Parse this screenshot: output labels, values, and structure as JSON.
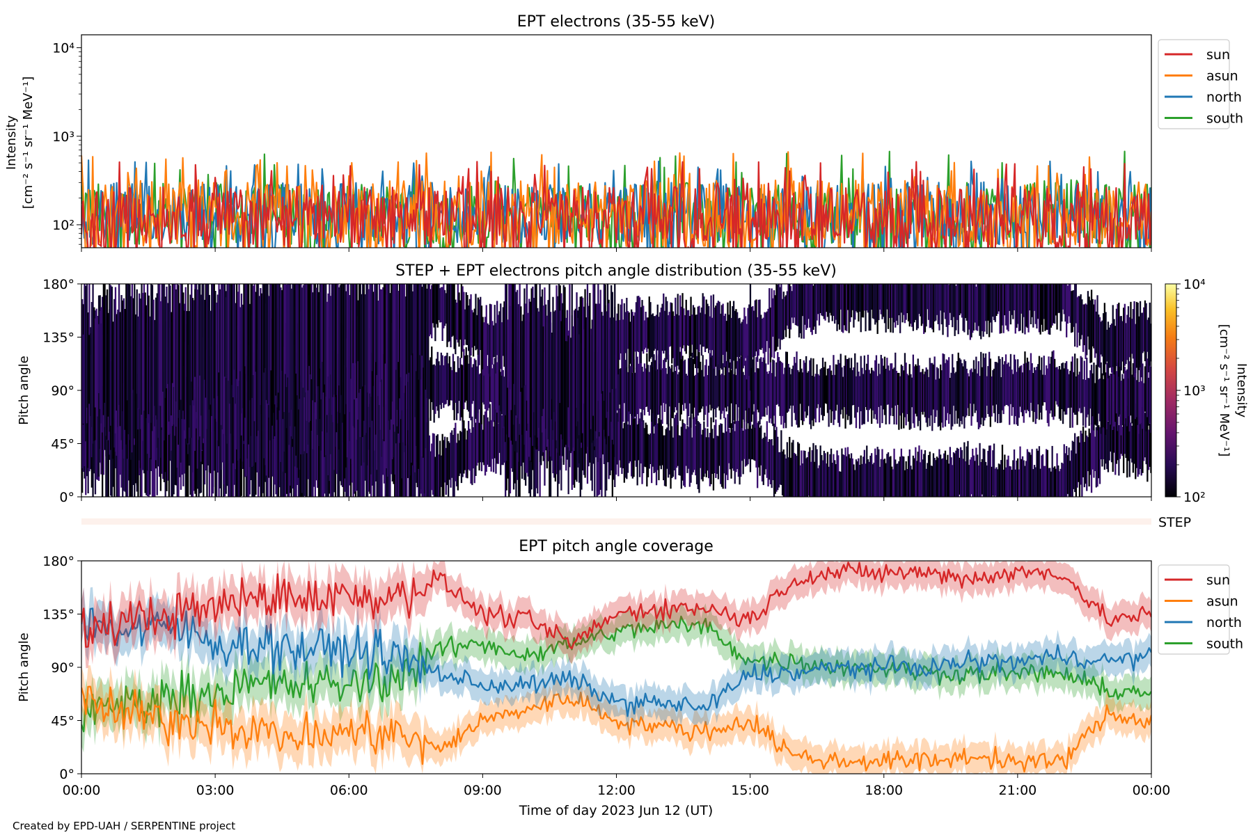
{
  "figure": {
    "footer": "Created by EPD-UAH / SERPENTINE project",
    "xlabel": "Time of day 2023 Jun 12 (UT)",
    "xticks": [
      "00:00",
      "03:00",
      "06:00",
      "09:00",
      "12:00",
      "15:00",
      "18:00",
      "21:00",
      "00:00"
    ]
  },
  "panels": {
    "intensity": {
      "title": "EPT electrons (35-55 keV)",
      "ylabel_line1": "Intensity",
      "ylabel_line2": "[cm⁻² s⁻¹ sr⁻¹ MeV⁻¹]",
      "yticks": [
        {
          "value": 100,
          "label": "10²"
        },
        {
          "value": 1000,
          "label": "10³"
        },
        {
          "value": 10000,
          "label": "10⁴"
        }
      ]
    },
    "pad": {
      "title": "STEP + EPT electrons pitch angle distribution (35-55 keV)",
      "ylabel": "Pitch angle",
      "yticks": [
        "0°",
        "45°",
        "90°",
        "135°",
        "180°"
      ],
      "colorbar_label": "Intensity",
      "colorbar_units": "[cm⁻² s⁻¹ sr⁻¹ MeV⁻¹]",
      "colorbar_ticks": [
        "10²",
        "10³",
        "10⁴"
      ]
    },
    "step": {
      "label": "STEP"
    },
    "coverage": {
      "title": "EPT pitch angle coverage",
      "ylabel": "Pitch angle",
      "yticks": [
        "0°",
        "45°",
        "90°",
        "135°",
        "180°"
      ]
    }
  },
  "legend": [
    {
      "name": "sun",
      "color": "#d62728"
    },
    {
      "name": "asun",
      "color": "#ff7f0e"
    },
    {
      "name": "north",
      "color": "#1f77b4"
    },
    {
      "name": "south",
      "color": "#2ca02c"
    }
  ],
  "chart_data": [
    {
      "type": "line",
      "title": "EPT electrons (35-55 keV)",
      "xlabel": "",
      "ylabel": "Intensity [cm⁻² s⁻¹ sr⁻¹ MeV⁻¹]",
      "x_unit": "hours (UT)",
      "xlim": [
        0,
        24
      ],
      "yscale": "log",
      "ylim": [
        55,
        14000
      ],
      "legend_position": "outside right, top",
      "series": [
        {
          "name": "sun",
          "color": "#d62728",
          "typical_range": [
            55,
            270
          ],
          "max": 520
        },
        {
          "name": "asun",
          "color": "#ff7f0e",
          "typical_range": [
            55,
            320
          ],
          "max": 680
        },
        {
          "name": "north",
          "color": "#1f77b4",
          "typical_range": [
            60,
            300
          ],
          "max": 550
        },
        {
          "name": "south",
          "color": "#2ca02c",
          "typical_range": [
            60,
            300
          ],
          "max": 680
        }
      ]
    },
    {
      "type": "heatmap",
      "title": "STEP + EPT electrons pitch angle distribution (35-55 keV)",
      "ylabel": "Pitch angle",
      "x_unit": "hours (UT)",
      "xlim": [
        0,
        24
      ],
      "ylim": [
        0,
        180
      ],
      "color_scale": "log",
      "color_range": [
        100,
        10000
      ],
      "colormap": "inferno",
      "colorbar_label": "Intensity [cm⁻² s⁻¹ sr⁻¹ MeV⁻¹]"
    },
    {
      "type": "line",
      "title": "EPT pitch angle coverage",
      "xlabel": "Time of day 2023 Jun 12 (UT)",
      "ylabel": "Pitch angle",
      "xlim": [
        0,
        24
      ],
      "ylim": [
        0,
        180
      ],
      "legend_position": "outside right, top",
      "series": [
        {
          "name": "sun",
          "color": "#d62728",
          "x": [
            0,
            1,
            2,
            3,
            4,
            5,
            6,
            7,
            8,
            9,
            10,
            11,
            12,
            13,
            14,
            15,
            16,
            17,
            18,
            19,
            20,
            21,
            22,
            23,
            24
          ],
          "values": [
            120,
            130,
            135,
            140,
            150,
            150,
            150,
            150,
            165,
            135,
            130,
            110,
            135,
            140,
            140,
            130,
            165,
            170,
            170,
            170,
            165,
            170,
            170,
            130,
            135
          ]
        },
        {
          "name": "asun",
          "color": "#ff7f0e",
          "x": [
            0,
            1,
            2,
            3,
            4,
            5,
            6,
            7,
            8,
            9,
            10,
            11,
            12,
            13,
            14,
            15,
            16,
            17,
            18,
            19,
            20,
            21,
            22,
            23,
            24
          ],
          "values": [
            60,
            50,
            45,
            45,
            35,
            30,
            35,
            35,
            20,
            45,
            55,
            65,
            45,
            40,
            35,
            45,
            15,
            10,
            12,
            10,
            15,
            10,
            10,
            50,
            45
          ]
        },
        {
          "name": "north",
          "color": "#1f77b4",
          "x": [
            0,
            1,
            2,
            3,
            4,
            5,
            6,
            7,
            8,
            9,
            10,
            11,
            12,
            13,
            14,
            15,
            16,
            17,
            18,
            19,
            20,
            21,
            22,
            23,
            24
          ],
          "values": [
            130,
            120,
            125,
            110,
            110,
            105,
            105,
            100,
            85,
            75,
            75,
            80,
            60,
            60,
            55,
            85,
            85,
            90,
            90,
            90,
            95,
            95,
            100,
            95,
            100
          ]
        },
        {
          "name": "south",
          "color": "#2ca02c",
          "x": [
            0,
            1,
            2,
            3,
            4,
            5,
            6,
            7,
            8,
            9,
            10,
            11,
            12,
            13,
            14,
            15,
            16,
            17,
            18,
            19,
            20,
            21,
            22,
            23,
            24
          ],
          "values": [
            50,
            60,
            65,
            70,
            75,
            75,
            75,
            80,
            105,
            110,
            100,
            110,
            120,
            125,
            125,
            95,
            95,
            90,
            90,
            85,
            85,
            85,
            85,
            70,
            70
          ]
        }
      ]
    }
  ]
}
